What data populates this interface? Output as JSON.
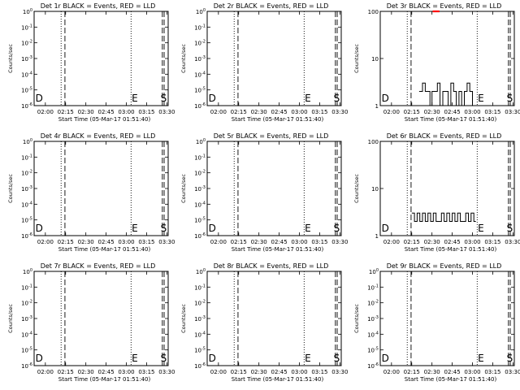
{
  "chart_data": [
    {
      "type": "line",
      "title": "Det 1r BLACK = Events, RED = LLD",
      "xlabel": "Start Time (05-Mar-17 01:51:40)",
      "ylabel": "Counts/sec",
      "x_ticks": [
        "02:00",
        "02:15",
        "02:30",
        "02:45",
        "03:00",
        "03:15",
        "03:30"
      ],
      "xlim": [
        "01:51:40",
        "03:31:00"
      ],
      "yscale": "log",
      "y_ticks": [
        "10^0",
        "10^-1",
        "10^-2",
        "10^-3",
        "10^-4",
        "10^-5",
        "10^-6"
      ],
      "ylim": [
        1e-06,
        1
      ],
      "dotted_lines": [
        "02:11:40",
        "03:03:30"
      ],
      "dashed_lines": [
        "02:14:30",
        "03:26:40",
        "03:28:00"
      ],
      "markers": [
        {
          "label": "D",
          "time": "01:52:40"
        },
        {
          "label": "E",
          "time": "03:04:00"
        },
        {
          "label": "S",
          "time": "03:25:20"
        }
      ],
      "series": []
    },
    {
      "type": "line",
      "title": "Det 2r BLACK = Events, RED = LLD",
      "xlabel": "Start Time (05-Mar-17 01:51:40)",
      "ylabel": "Counts/sec",
      "x_ticks": [
        "02:00",
        "02:15",
        "02:30",
        "02:45",
        "03:00",
        "03:15",
        "03:30"
      ],
      "xlim": [
        "01:51:40",
        "03:31:00"
      ],
      "yscale": "log",
      "y_ticks": [
        "10^0",
        "10^-1",
        "10^-2",
        "10^-3",
        "10^-4",
        "10^-5",
        "10^-6"
      ],
      "ylim": [
        1e-06,
        1
      ],
      "dotted_lines": [
        "02:11:40",
        "03:03:30"
      ],
      "dashed_lines": [
        "02:14:30",
        "03:26:40",
        "03:28:00"
      ],
      "markers": [
        {
          "label": "D",
          "time": "01:52:40"
        },
        {
          "label": "E",
          "time": "03:04:00"
        },
        {
          "label": "S",
          "time": "03:25:20"
        }
      ],
      "series": []
    },
    {
      "type": "line",
      "title": "Det 3r BLACK = Events, RED = LLD",
      "xlabel": "Start Time (05-Mar-17 01:51:40)",
      "ylabel": "Counts/sec",
      "x_ticks": [
        "02:00",
        "02:15",
        "02:30",
        "02:45",
        "03:00",
        "03:15",
        "03:30"
      ],
      "xlim": [
        "01:51:40",
        "03:31:00"
      ],
      "yscale": "log",
      "y_ticks": [
        "100",
        "10",
        "1"
      ],
      "ylim": [
        1,
        100
      ],
      "dotted_lines": [
        "02:11:40",
        "03:03:30"
      ],
      "dashed_lines": [
        "02:14:30",
        "03:26:40",
        "03:28:00"
      ],
      "markers": [
        {
          "label": "D",
          "time": "01:52:40"
        },
        {
          "label": "E",
          "time": "03:04:00"
        },
        {
          "label": "S",
          "time": "03:25:20"
        }
      ],
      "series": [
        {
          "color": "#000000",
          "x": [
            "02:20:30",
            "02:23:00",
            "02:25:00",
            "02:27:00",
            "02:28:30",
            "02:30:00",
            "02:32:00",
            "02:34:00",
            "02:36:00",
            "02:38:00",
            "02:40:00",
            "02:42:00",
            "02:44:00",
            "02:46:00",
            "02:48:00",
            "02:50:00",
            "02:52:00",
            "02:54:00",
            "02:56:00",
            "02:58:00",
            "03:00:00",
            "03:01:30"
          ],
          "y": [
            2,
            3,
            2,
            2,
            1,
            2,
            2,
            3,
            1,
            2,
            2,
            1,
            3,
            2,
            1,
            2,
            1,
            2,
            3,
            2,
            1,
            1
          ]
        },
        {
          "color": "#ff0000",
          "x": [
            "02:30:30",
            "02:35:30"
          ],
          "y": [
            100,
            100
          ]
        }
      ]
    },
    {
      "type": "line",
      "title": "Det 4r BLACK = Events, RED = LLD",
      "xlabel": "Start Time (05-Mar-17 01:51:40)",
      "ylabel": "Counts/sec",
      "x_ticks": [
        "02:00",
        "02:15",
        "02:30",
        "02:45",
        "03:00",
        "03:15",
        "03:30"
      ],
      "xlim": [
        "01:51:40",
        "03:31:00"
      ],
      "yscale": "log",
      "y_ticks": [
        "10^0",
        "10^-1",
        "10^-2",
        "10^-3",
        "10^-4",
        "10^-5",
        "10^-6"
      ],
      "ylim": [
        1e-06,
        1
      ],
      "dotted_lines": [
        "02:11:40",
        "03:03:30"
      ],
      "dashed_lines": [
        "02:14:30",
        "03:26:40",
        "03:28:00"
      ],
      "markers": [
        {
          "label": "D",
          "time": "01:52:40"
        },
        {
          "label": "E",
          "time": "03:04:00"
        },
        {
          "label": "S",
          "time": "03:25:20"
        }
      ],
      "series": []
    },
    {
      "type": "line",
      "title": "Det 5r BLACK = Events, RED = LLD",
      "xlabel": "Start Time (05-Mar-17 01:51:40)",
      "ylabel": "Counts/sec",
      "x_ticks": [
        "02:00",
        "02:15",
        "02:30",
        "02:45",
        "03:00",
        "03:15",
        "03:30"
      ],
      "xlim": [
        "01:51:40",
        "03:31:00"
      ],
      "yscale": "log",
      "y_ticks": [
        "10^0",
        "10^-1",
        "10^-2",
        "10^-3",
        "10^-4",
        "10^-5",
        "10^-6"
      ],
      "ylim": [
        1e-06,
        1
      ],
      "dotted_lines": [
        "02:11:40",
        "03:03:30"
      ],
      "dashed_lines": [
        "02:14:30",
        "03:26:40",
        "03:28:00"
      ],
      "markers": [
        {
          "label": "D",
          "time": "01:52:40"
        },
        {
          "label": "E",
          "time": "03:04:00"
        },
        {
          "label": "S",
          "time": "03:25:20"
        }
      ],
      "series": []
    },
    {
      "type": "line",
      "title": "Det 6r BLACK = Events, RED = LLD",
      "xlabel": "Start Time (05-Mar-17 01:51:40)",
      "ylabel": "Counts/sec",
      "x_ticks": [
        "02:00",
        "02:15",
        "02:30",
        "02:45",
        "03:00",
        "03:15",
        "03:30"
      ],
      "xlim": [
        "01:51:40",
        "03:31:00"
      ],
      "yscale": "log",
      "y_ticks": [
        "100",
        "10",
        "1"
      ],
      "ylim": [
        1,
        100
      ],
      "dotted_lines": [
        "02:11:40",
        "03:03:30"
      ],
      "dashed_lines": [
        "02:14:30",
        "03:26:40",
        "03:28:00"
      ],
      "markers": [
        {
          "label": "D",
          "time": "01:52:40"
        },
        {
          "label": "E",
          "time": "03:04:00"
        },
        {
          "label": "S",
          "time": "03:25:20"
        }
      ],
      "series": [
        {
          "color": "#000000",
          "x": [
            "02:15:00",
            "02:17:00",
            "02:19:00",
            "02:21:00",
            "02:23:00",
            "02:25:00",
            "02:27:00",
            "02:29:00",
            "02:31:00",
            "02:33:00",
            "02:35:00",
            "02:37:00",
            "02:39:00",
            "02:41:00",
            "02:43:00",
            "02:45:00",
            "02:47:00",
            "02:49:00",
            "02:51:00",
            "02:53:00",
            "02:55:00",
            "02:57:00",
            "02:59:00",
            "03:01:00",
            "03:02:30"
          ],
          "y": [
            3,
            2,
            3,
            2,
            3,
            2,
            3,
            2,
            3,
            2,
            2,
            3,
            2,
            3,
            2,
            3,
            2,
            3,
            2,
            2,
            3,
            2,
            3,
            2,
            2
          ]
        }
      ]
    },
    {
      "type": "line",
      "title": "Det 7r BLACK = Events, RED = LLD",
      "xlabel": "Start Time (05-Mar-17 01:51:40)",
      "ylabel": "Counts/sec",
      "x_ticks": [
        "02:00",
        "02:15",
        "02:30",
        "02:45",
        "03:00",
        "03:15",
        "03:30"
      ],
      "xlim": [
        "01:51:40",
        "03:31:00"
      ],
      "yscale": "log",
      "y_ticks": [
        "10^0",
        "10^-1",
        "10^-2",
        "10^-3",
        "10^-4",
        "10^-5",
        "10^-6"
      ],
      "ylim": [
        1e-06,
        1
      ],
      "dotted_lines": [
        "02:11:40",
        "03:03:30"
      ],
      "dashed_lines": [
        "02:14:30",
        "03:26:40",
        "03:28:00"
      ],
      "markers": [
        {
          "label": "D",
          "time": "01:52:40"
        },
        {
          "label": "E",
          "time": "03:04:00"
        },
        {
          "label": "S",
          "time": "03:25:20"
        }
      ],
      "series": []
    },
    {
      "type": "line",
      "title": "Det 8r BLACK = Events, RED = LLD",
      "xlabel": "Start Time (05-Mar-17 01:51:40)",
      "ylabel": "Counts/sec",
      "x_ticks": [
        "02:00",
        "02:15",
        "02:30",
        "02:45",
        "03:00",
        "03:15",
        "03:30"
      ],
      "xlim": [
        "01:51:40",
        "03:31:00"
      ],
      "yscale": "log",
      "y_ticks": [
        "10^0",
        "10^-1",
        "10^-2",
        "10^-3",
        "10^-4",
        "10^-5",
        "10^-6"
      ],
      "ylim": [
        1e-06,
        1
      ],
      "dotted_lines": [
        "02:11:40",
        "03:03:30"
      ],
      "dashed_lines": [
        "02:14:30",
        "03:26:40",
        "03:28:00"
      ],
      "markers": [
        {
          "label": "D",
          "time": "01:52:40"
        },
        {
          "label": "E",
          "time": "03:04:00"
        },
        {
          "label": "S",
          "time": "03:25:20"
        }
      ],
      "series": []
    },
    {
      "type": "line",
      "title": "Det 9r BLACK = Events, RED = LLD",
      "xlabel": "Start Time (05-Mar-17 01:51:40)",
      "ylabel": "Counts/sec",
      "x_ticks": [
        "02:00",
        "02:15",
        "02:30",
        "02:45",
        "03:00",
        "03:15",
        "03:30"
      ],
      "xlim": [
        "01:51:40",
        "03:31:00"
      ],
      "yscale": "log",
      "y_ticks": [
        "10^0",
        "10^-1",
        "10^-2",
        "10^-3",
        "10^-4",
        "10^-5",
        "10^-6"
      ],
      "ylim": [
        1e-06,
        1
      ],
      "dotted_lines": [
        "02:11:40",
        "03:03:30"
      ],
      "dashed_lines": [
        "02:14:30",
        "03:26:40",
        "03:28:00"
      ],
      "markers": [
        {
          "label": "D",
          "time": "01:52:40"
        },
        {
          "label": "E",
          "time": "03:04:00"
        },
        {
          "label": "S",
          "time": "03:25:20"
        }
      ],
      "series": []
    }
  ]
}
